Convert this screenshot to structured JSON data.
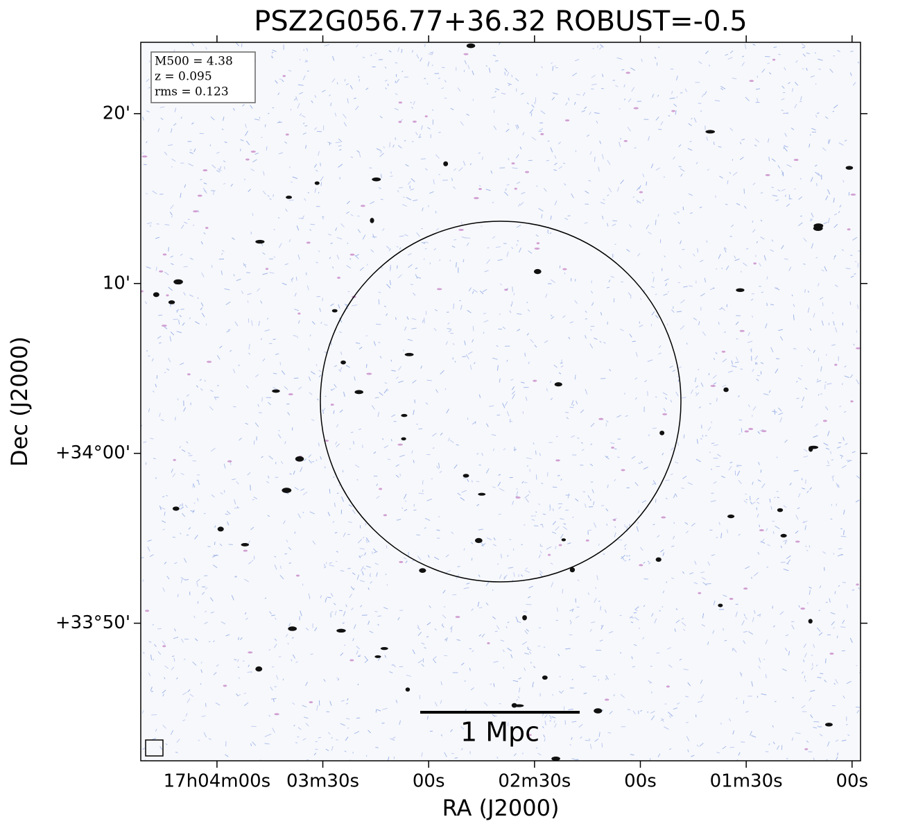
{
  "chart_data": {
    "type": "image",
    "title": "PSZ2G056.77+36.32 ROBUST=-0.5",
    "xlabel": "RA (J2000)",
    "ylabel": "Dec (J2000)",
    "xlim": [
      261.6,
      57.6
    ],
    "xticks": [
      {
        "value": 240,
        "label": "17h04m00s"
      },
      {
        "value": 210,
        "label": "03m30s"
      },
      {
        "value": 180,
        "label": "00s"
      },
      {
        "value": 150,
        "label": "02m30s"
      },
      {
        "value": 120,
        "label": "00s"
      },
      {
        "value": 90,
        "label": "01m30s"
      },
      {
        "value": 60,
        "label": "00s"
      }
    ],
    "ylim": [
      -18.1,
      24.2
    ],
    "yticks": [
      {
        "value": 20,
        "label": "20'"
      },
      {
        "value": 10,
        "label": "10'"
      },
      {
        "value": 0,
        "label": "+34°00'"
      },
      {
        "value": -10,
        "label": "+33°50'"
      }
    ],
    "annotations": [
      "M500 = 4.38",
      "z = 0.095",
      "rms = 0.123"
    ],
    "scalebar_label": "1 Mpc"
  }
}
